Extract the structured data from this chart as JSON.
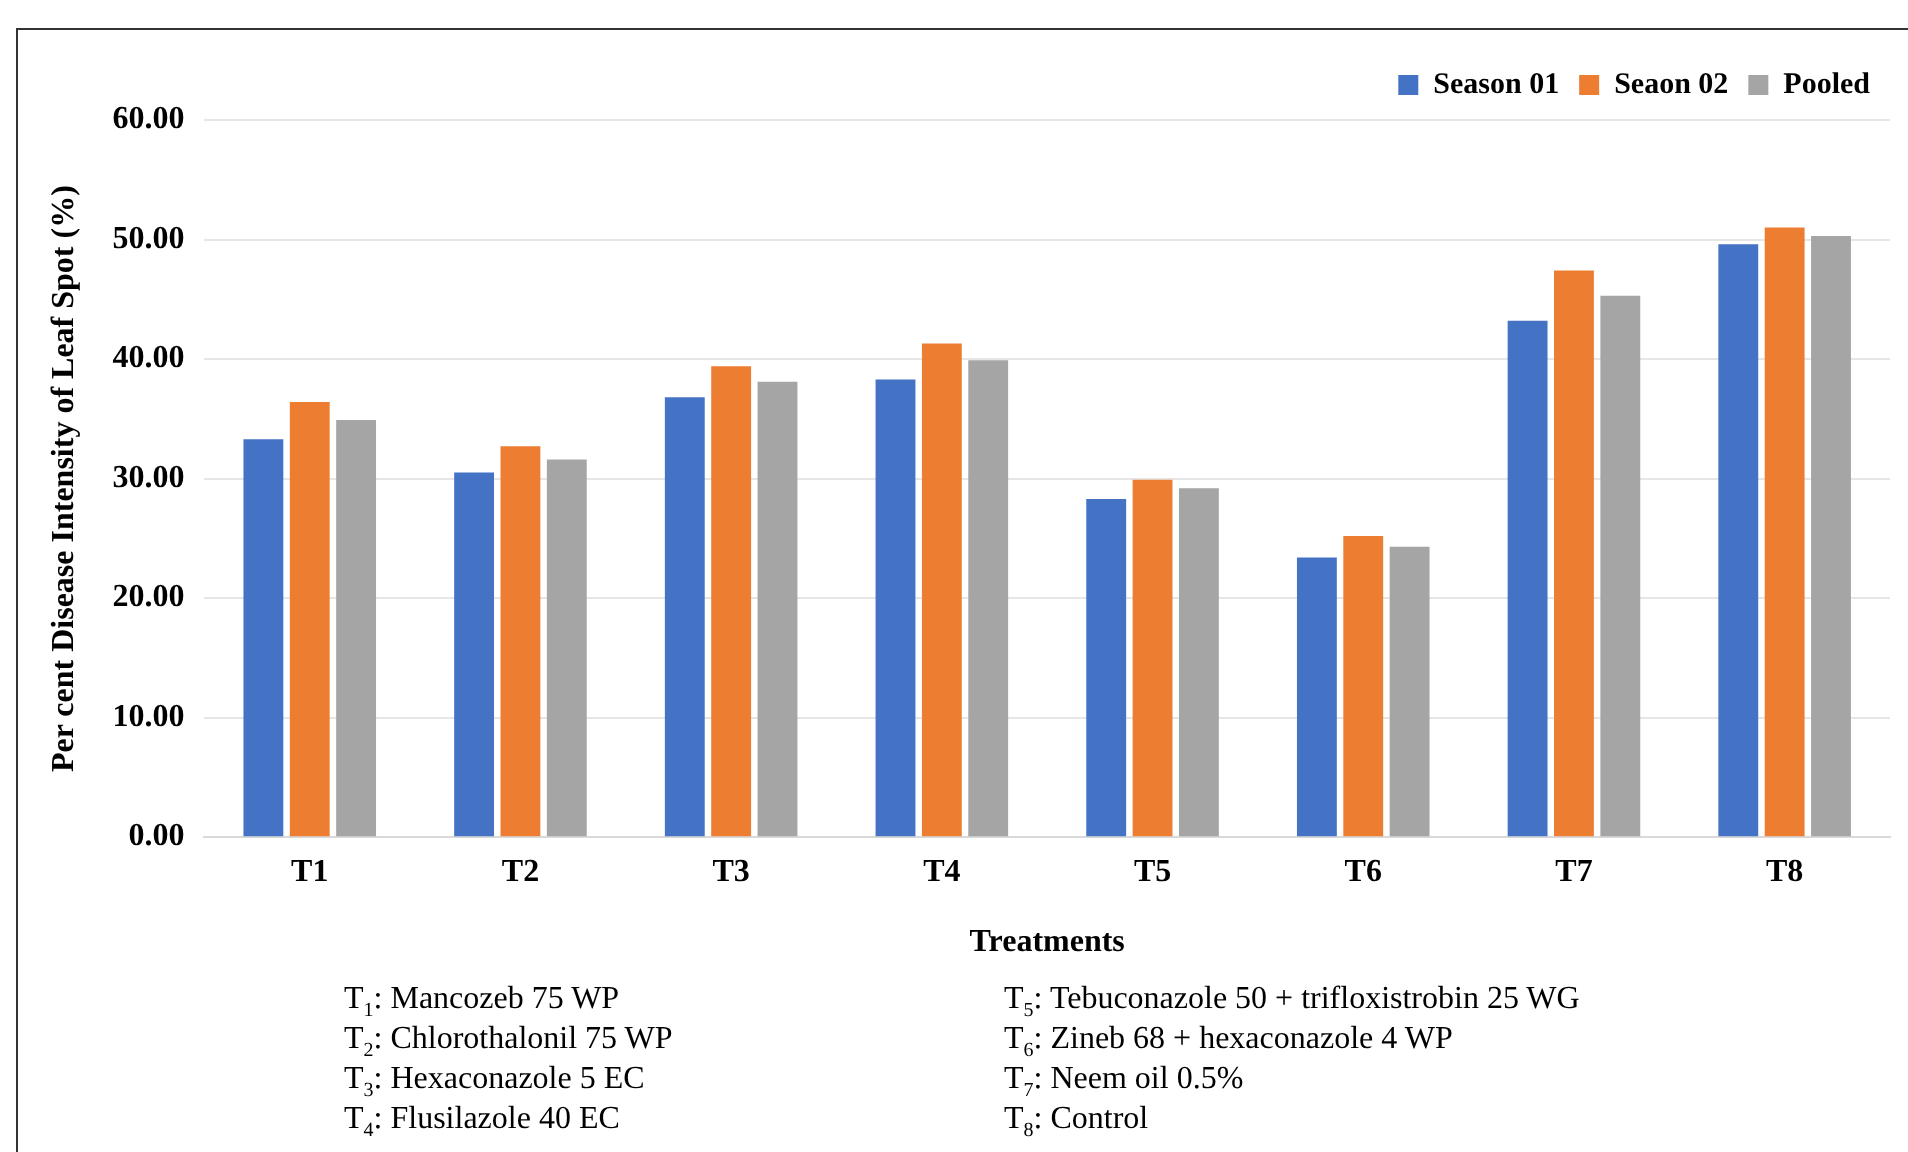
{
  "chart_data": {
    "type": "bar",
    "xlabel": "Treatments",
    "ylabel": "Per cent Disease Intensity of Leaf Spot (%)",
    "categories": [
      "T1",
      "T2",
      "T3",
      "T4",
      "T5",
      "T6",
      "T7",
      "T8"
    ],
    "series": [
      {
        "name": "Season 01",
        "color": "#4472c4",
        "values": [
          33.3,
          30.5,
          36.8,
          38.3,
          28.3,
          23.4,
          43.2,
          49.6
        ]
      },
      {
        "name": "Seaon 02",
        "color": "#ed7d31",
        "values": [
          36.4,
          32.7,
          39.4,
          41.3,
          29.9,
          25.2,
          47.4,
          51.0
        ]
      },
      {
        "name": "Pooled",
        "color": "#a5a5a5",
        "values": [
          34.9,
          31.6,
          38.1,
          39.9,
          29.2,
          24.3,
          45.3,
          50.3
        ]
      }
    ],
    "ylim": [
      0,
      60
    ],
    "yticks": [
      {
        "value": 0,
        "label": "0.00"
      },
      {
        "value": 10,
        "label": "10.00"
      },
      {
        "value": 20,
        "label": "20.00"
      },
      {
        "value": 30,
        "label": "30.00"
      },
      {
        "value": 40,
        "label": "40.00"
      },
      {
        "value": 50,
        "label": "50.00"
      },
      {
        "value": 60,
        "label": "60.00"
      }
    ],
    "grid": "y",
    "legend": "top right",
    "annotations": [
      "T$_{1}$: Mancozeb 75 WP",
      "T$_{2}$: Chlorothalonil 75 WP",
      "T$_{3}$: Hexaconazole 5 EC",
      "T$_{4}$: Flusilazole 40 EC",
      "T$_{5}$: Tebuconazole 50 + trifloxistrobin 25 WG",
      "T$_{6}$: Zineb 68 + hexaconazole 4 WP",
      "T$_{7}$: Neem oil 0.5%",
      "T$_{8}$: Control"
    ]
  }
}
